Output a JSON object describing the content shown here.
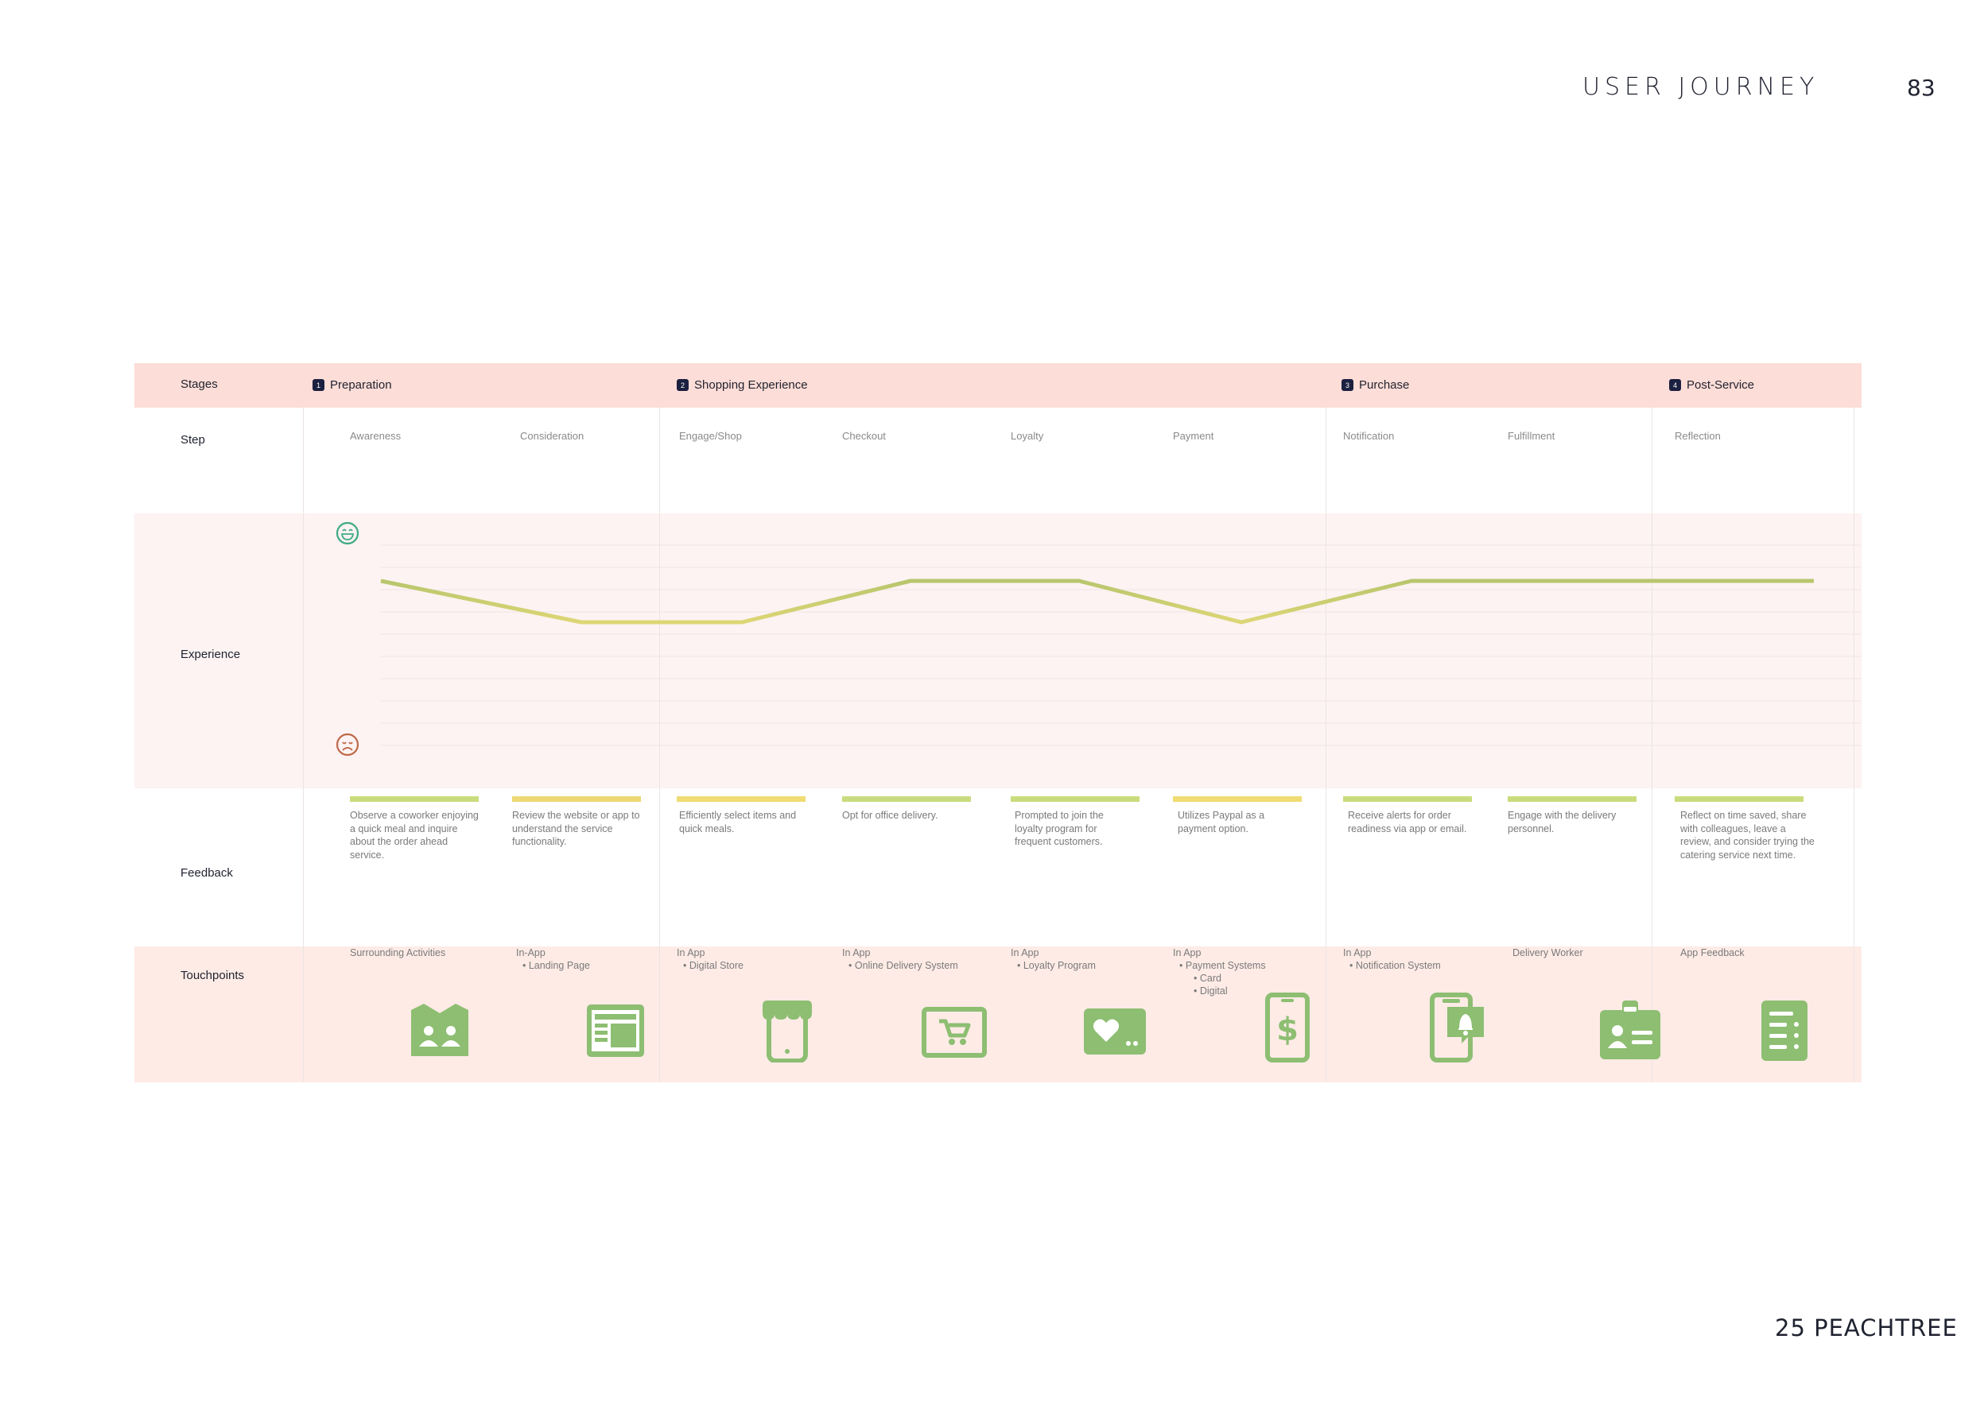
{
  "header": {
    "title": "USER JOURNEY",
    "page_number": "83"
  },
  "footer": {
    "brand": "25 PEACHTREE"
  },
  "rows": {
    "stages": "Stages",
    "step": "Step",
    "experience": "Experience",
    "feedback": "Feedback",
    "touchpoints": "Touchpoints"
  },
  "stages": [
    {
      "num": "1",
      "label": "Preparation"
    },
    {
      "num": "2",
      "label": "Shopping Experience"
    },
    {
      "num": "3",
      "label": "Purchase"
    },
    {
      "num": "4",
      "label": "Post-Service"
    }
  ],
  "steps": [
    "Awareness",
    "Consideration",
    "Engage/Shop",
    "Checkout",
    "Loyalty",
    "Payment",
    "Notification",
    "Fulfillment",
    "Reflection"
  ],
  "experience_levels": [
    0.75,
    0.55,
    0.55,
    0.75,
    0.75,
    0.55,
    0.75,
    0.75,
    0.75,
    0.75
  ],
  "feedback": [
    {
      "text": "Observe a coworker enjoying a quick meal and inquire about the order ahead service.",
      "color": "#c9dc7d"
    },
    {
      "text": "Review the website or app to understand the service functionality.",
      "color": "#ecd874"
    },
    {
      "text": "Efficiently select items and quick meals.",
      "color": "#efdc73"
    },
    {
      "text": "Opt for office delivery.",
      "color": "#c8dc7f"
    },
    {
      "text": "Prompted to join the loyalty program for frequent customers.",
      "color": "#c9dc7d"
    },
    {
      "text": "Utilizes Paypal as a payment option.",
      "color": "#efdc73"
    },
    {
      "text": "Receive alerts for order readiness via app or email.",
      "color": "#c9dc7d"
    },
    {
      "text": "Engage with the delivery personnel.",
      "color": "#c9dc7d"
    },
    {
      "text": "Reflect on time saved, share with colleagues, leave a review, and consider trying the catering service next time.",
      "color": "#c9dc7d"
    }
  ],
  "touchpoints": [
    {
      "title": "Surrounding Activities",
      "items": [],
      "icon": "people-building-icon"
    },
    {
      "title": "In-App",
      "items": [
        "Landing Page"
      ],
      "icon": "landing-page-icon"
    },
    {
      "title": "In App",
      "items": [
        "Digital Store"
      ],
      "icon": "store-phone-icon"
    },
    {
      "title": "In App",
      "items": [
        "Online Delivery System"
      ],
      "icon": "cart-screen-icon"
    },
    {
      "title": "In App",
      "items": [
        "Loyalty Program"
      ],
      "icon": "loyalty-card-icon"
    },
    {
      "title": "In App",
      "items": [
        "Payment Systems",
        "Card",
        "Digital"
      ],
      "icon": "dollar-phone-icon"
    },
    {
      "title": "In App",
      "items": [
        "Notification System"
      ],
      "icon": "notification-phone-icon"
    },
    {
      "title": "Delivery Worker",
      "items": [],
      "icon": "id-badge-icon"
    },
    {
      "title": "App Feedback",
      "items": [],
      "icon": "feedback-list-icon"
    }
  ],
  "colors": {
    "line_good": "#b5c46c",
    "line_low": "#ecd874",
    "icon_green": "#8dbe72",
    "stage_band": "#fdddd7"
  }
}
